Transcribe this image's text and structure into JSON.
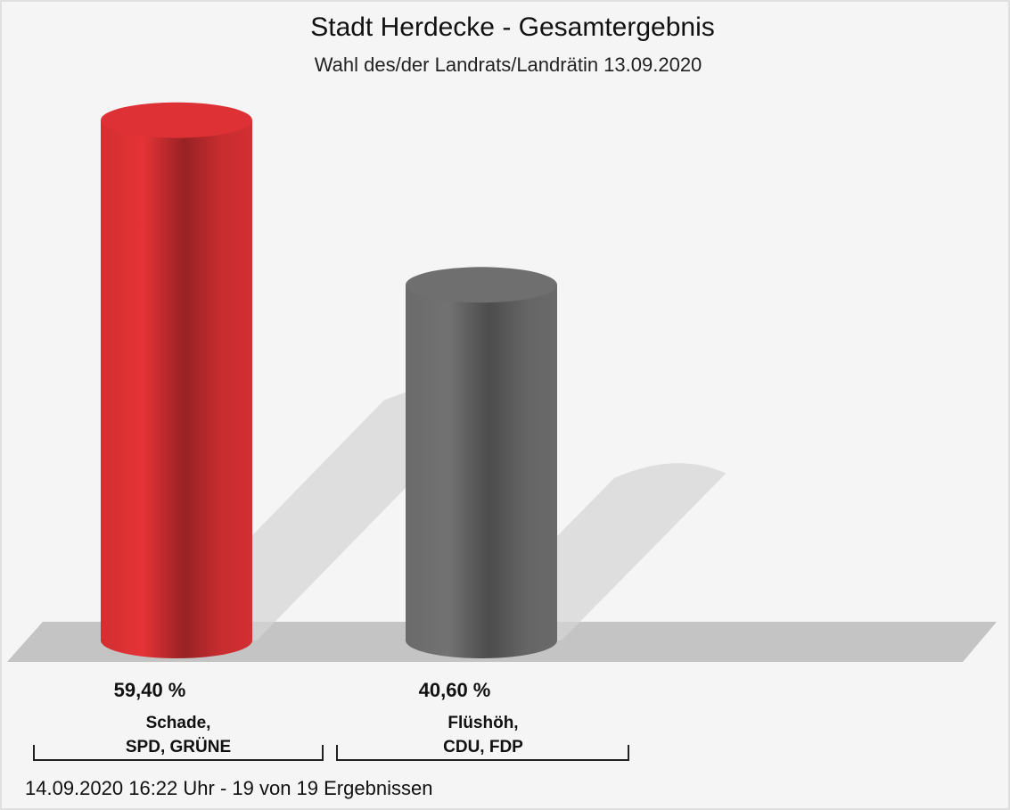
{
  "chart_data": {
    "type": "bar",
    "title": "Stadt Herdecke - Gesamtergebnis",
    "subtitle": "Wahl des/der Landrats/Landrätin 13.09.2020",
    "categories": [
      "Schade,\nSPD, GRÜNE",
      "Flüshöh,\nCDU, FDP"
    ],
    "values": [
      59.4,
      40.6
    ],
    "value_labels": [
      "59,40 %",
      "40,60 %"
    ],
    "colors": [
      "#d32f32",
      "#6a6a6a"
    ],
    "footnote": "14.09.2020 16:22 Uhr - 19 von 19 Ergebnissen"
  }
}
